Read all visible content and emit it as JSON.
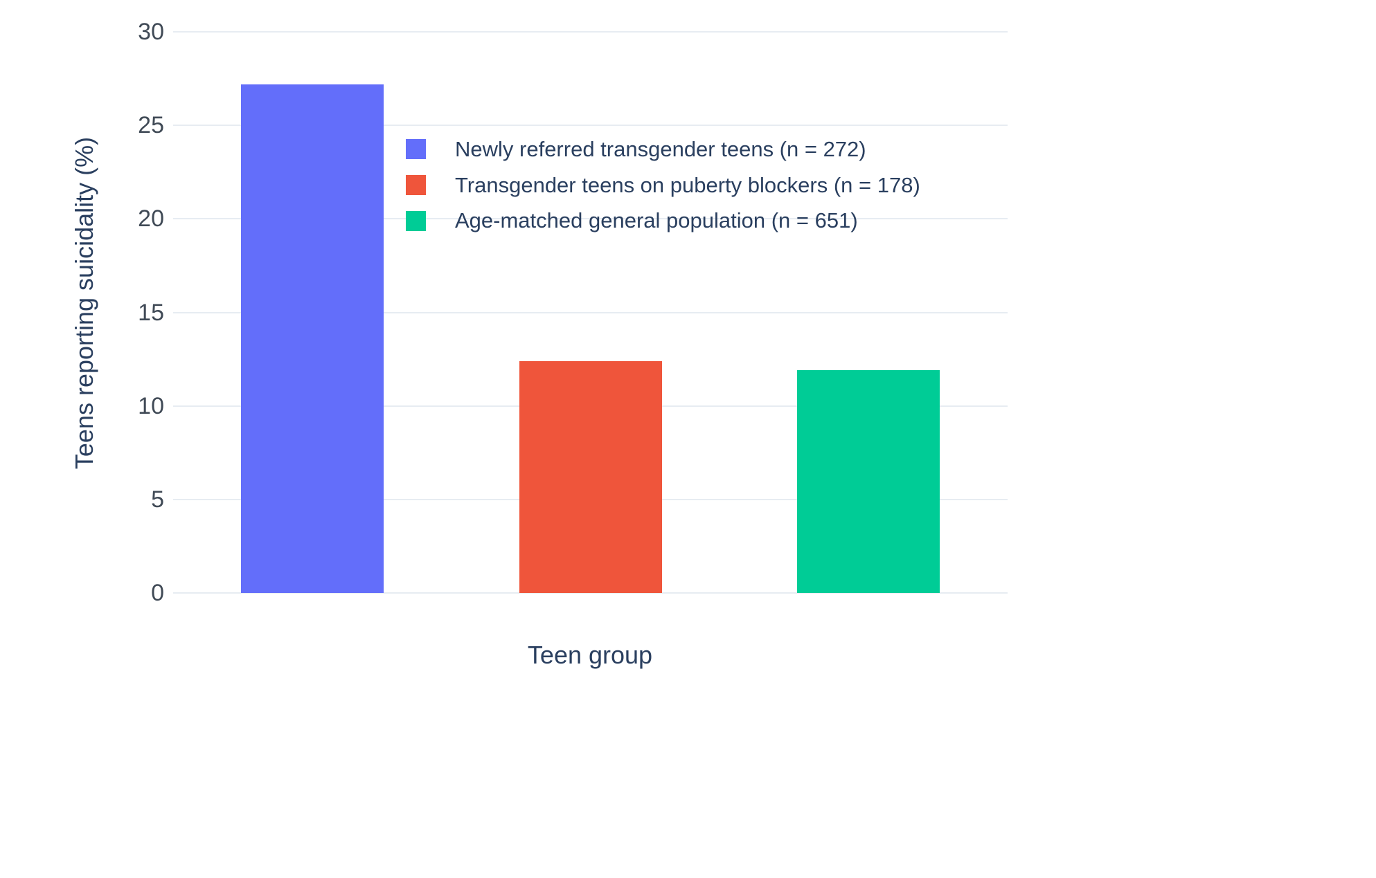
{
  "chart_data": {
    "type": "bar",
    "title": "",
    "xlabel": "Teen group",
    "ylabel": "Teens reporting suicidality (%)",
    "ylim": [
      0,
      30
    ],
    "yticks": [
      0,
      5,
      10,
      15,
      20,
      25,
      30
    ],
    "grid": true,
    "legend_position": "inside-top-center",
    "series": [
      {
        "name": "Newly referred transgender teens (n = 272)",
        "value": 27.2,
        "color": "#636EFA"
      },
      {
        "name": "Transgender teens on puberty blockers (n = 178)",
        "value": 12.4,
        "color": "#EF553B"
      },
      {
        "name": "Age-matched general population (n = 651)",
        "value": 11.9,
        "color": "#00CC96"
      }
    ]
  }
}
